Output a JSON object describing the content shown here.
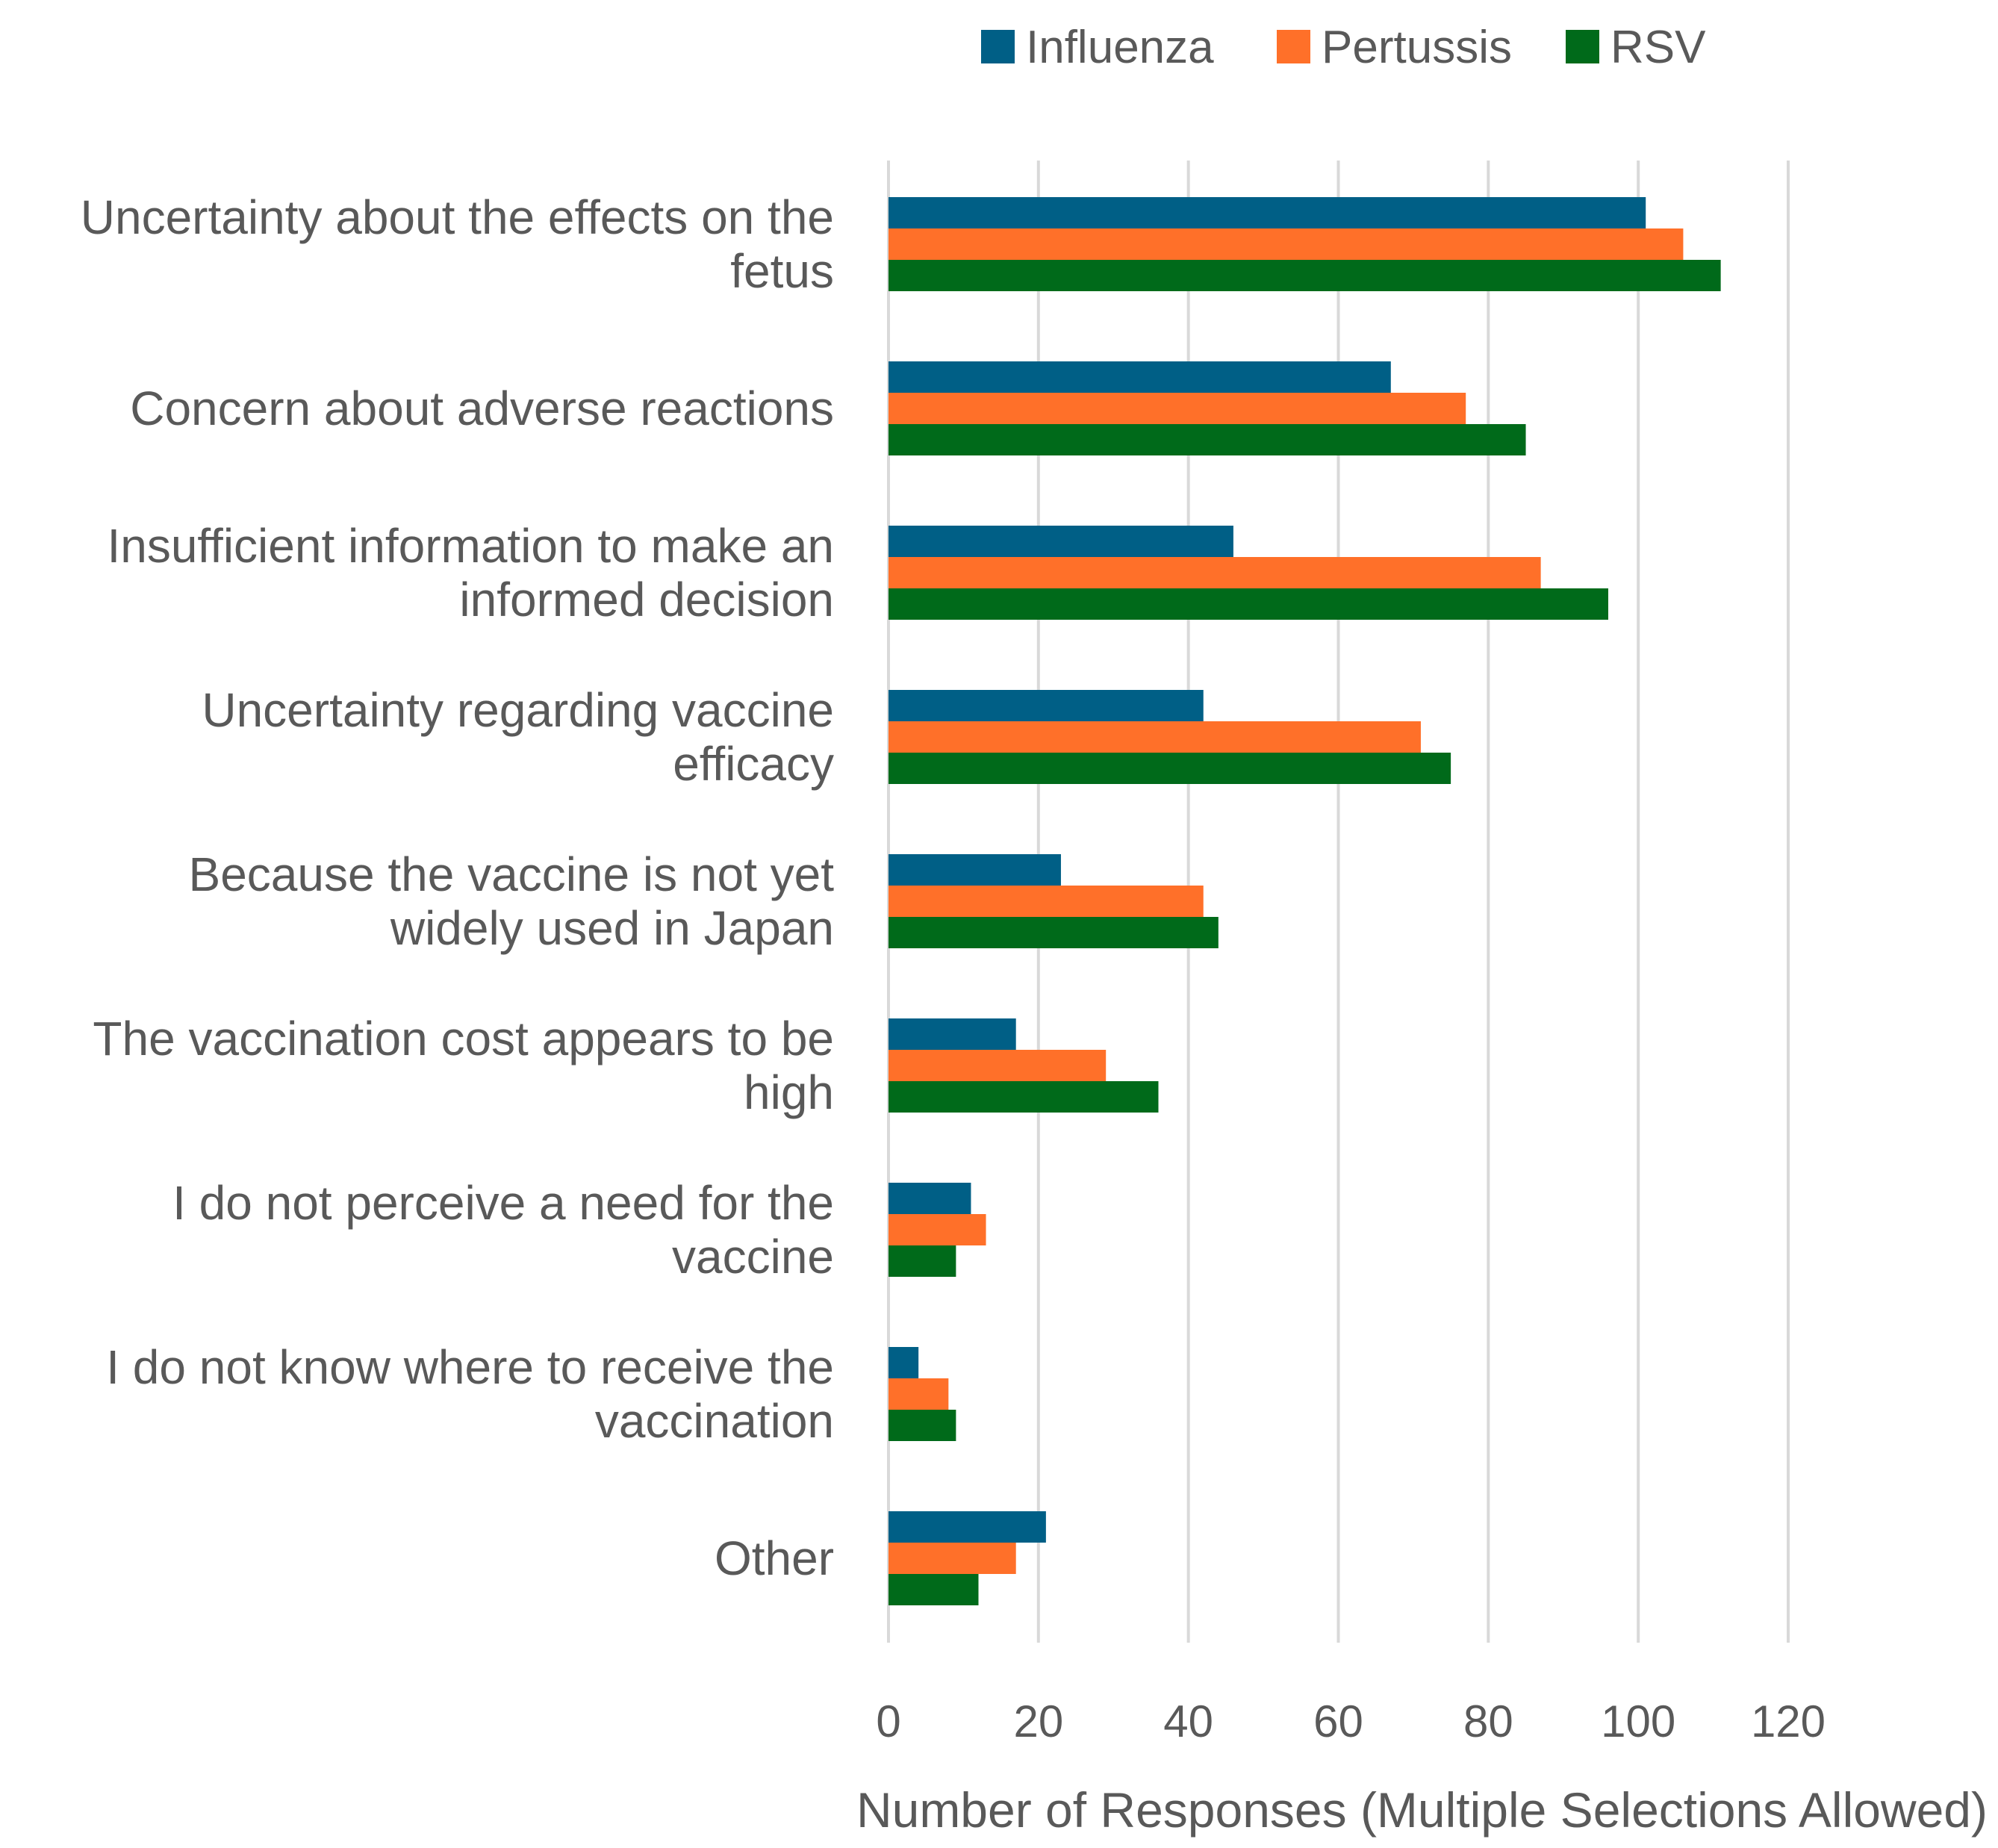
{
  "chart_data": {
    "type": "bar",
    "orientation": "horizontal",
    "title": "",
    "xlabel": "Number of Responses (Multiple Selections Allowed)",
    "ylabel": "",
    "xlim": [
      0,
      120
    ],
    "xticks": [
      0,
      20,
      40,
      60,
      80,
      100,
      120
    ],
    "grid": true,
    "legend_position": "top",
    "categories": [
      [
        "Uncertainty about the effects on the",
        "fetus"
      ],
      [
        "Concern about adverse reactions"
      ],
      [
        "Insufficient information to make an",
        "informed decision"
      ],
      [
        "Uncertainty regarding vaccine",
        "efficacy"
      ],
      [
        "Because the vaccine is not yet",
        "widely used in Japan"
      ],
      [
        "The vaccination cost appears to be",
        "high"
      ],
      [
        "I do not perceive a need for the",
        "vaccine"
      ],
      [
        "I do not know where to receive the",
        "vaccination"
      ],
      [
        "Other"
      ]
    ],
    "series": [
      {
        "name": "Influenza",
        "color": "#005f86",
        "values": [
          101,
          67,
          46,
          42,
          23,
          17,
          11,
          4,
          21
        ]
      },
      {
        "name": "Pertussis",
        "color": "#ff7029",
        "values": [
          106,
          77,
          87,
          71,
          42,
          29,
          13,
          8,
          17
        ]
      },
      {
        "name": "RSV",
        "color": "#006a1a",
        "values": [
          111,
          85,
          96,
          75,
          44,
          36,
          9,
          9,
          12
        ]
      }
    ]
  }
}
